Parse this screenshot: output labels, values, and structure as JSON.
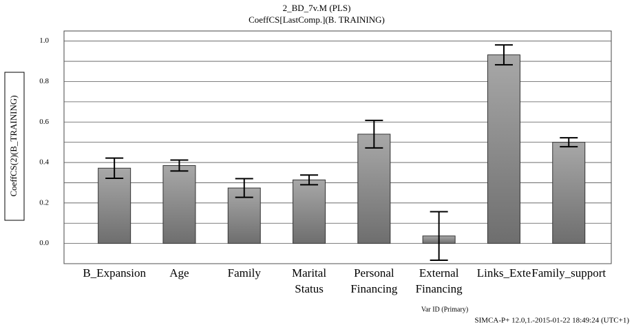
{
  "chart_data": {
    "type": "bar",
    "title": "2_BD_7v.M (PLS)",
    "subtitle": "CoeffCS[LastComp.](B. TRAINING)",
    "y_label": "CoeffCS(2)(B_TRAINING)",
    "x_label": "Var ID (Primary)",
    "footer": "SIMCA-P+ 12.0,1.-2015-01-22 18:49:24 (UTC+1)",
    "categories": [
      "B_Expansion",
      "Age",
      "Family",
      "Marital Status",
      "Personal Financing",
      "External Financing",
      "Links_Exte",
      "Family_support"
    ],
    "values": [
      0.372,
      0.385,
      0.274,
      0.314,
      0.54,
      0.037,
      0.932,
      0.5
    ],
    "errors": [
      0.05,
      0.027,
      0.046,
      0.024,
      0.068,
      0.12,
      0.049,
      0.022
    ],
    "color": "#8c8c8c",
    "ylim": [
      -0.1,
      1.05
    ],
    "yticks": [
      {
        "value": 0,
        "label": "0.0"
      },
      0.2,
      0.4,
      0.6,
      0.8,
      {
        "value": 1,
        "label": "1.0"
      }
    ],
    "minor_ticks": [
      -0.1,
      0.1,
      0.3,
      0.5,
      0.7,
      0.9
    ],
    "grid": true
  }
}
